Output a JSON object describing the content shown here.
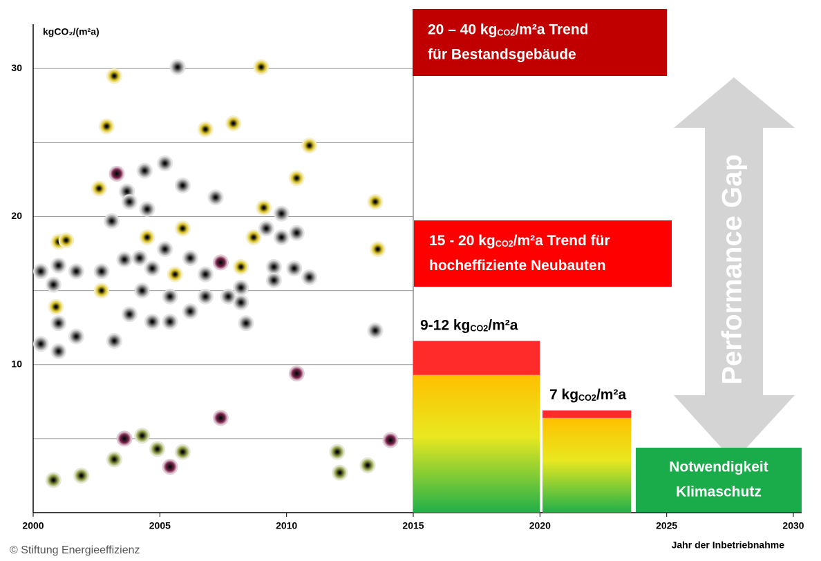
{
  "chart_data": {
    "type": "scatter",
    "y_label": "kgCO₂/(m²a)",
    "x_label": "Jahr der Inbetriebnahme",
    "footer": "© Stiftung Energieeffizienz",
    "xlim": [
      2000,
      2030
    ],
    "xticks": [
      2000,
      2005,
      2010,
      2015,
      2020,
      2025,
      2030
    ],
    "ylim": [
      0,
      33
    ],
    "yticks": [
      10,
      20,
      30
    ],
    "grid_lines": [
      5,
      10,
      15,
      20,
      25,
      30
    ],
    "grid_end": 2015,
    "series": [
      {
        "color": "#8a8a8a",
        "x": [
          2000.3,
          2000.8,
          2001.0,
          2001.7,
          2001.0,
          2000.3,
          2001.0,
          2001.7,
          2002.7,
          2003.1,
          2003.2,
          2003.6,
          2003.7,
          2003.8,
          2003.8,
          2004.2,
          2004.3,
          2004.4,
          2004.5,
          2004.7,
          2004.7,
          2005.2,
          2005.2,
          2005.4,
          2005.4,
          2005.7,
          2005.9,
          2006.2,
          2006.2,
          2006.8,
          2006.8,
          2007.2,
          2007.7,
          2008.2,
          2008.2,
          2008.4,
          2009.2,
          2009.5,
          2009.5,
          2009.8,
          2009.8,
          2010.3,
          2010.4,
          2010.9,
          2013.5
        ],
        "values": [
          16.3,
          15.4,
          16.7,
          16.3,
          12.8,
          11.4,
          10.9,
          11.9,
          16.3,
          19.7,
          11.6,
          17.1,
          21.7,
          21.0,
          13.4,
          17.2,
          15.0,
          23.1,
          20.5,
          16.5,
          12.9,
          23.6,
          17.8,
          14.6,
          12.9,
          30.1,
          22.1,
          17.2,
          13.6,
          16.1,
          14.6,
          21.3,
          14.6,
          15.2,
          14.2,
          12.8,
          19.2,
          16.6,
          15.7,
          20.2,
          18.6,
          16.5,
          18.9,
          15.9,
          12.3
        ]
      },
      {
        "color": "#d8c020",
        "x": [
          2001.0,
          2001.3,
          2000.9,
          2002.6,
          2002.7,
          2002.9,
          2003.2,
          2004.5,
          2005.6,
          2005.9,
          2006.8,
          2007.9,
          2008.7,
          2008.2,
          2009.0,
          2009.1,
          2010.4,
          2010.9,
          2013.5,
          2013.6
        ],
        "values": [
          18.3,
          18.4,
          13.9,
          21.9,
          15.0,
          26.1,
          29.5,
          18.6,
          16.1,
          19.2,
          25.9,
          26.3,
          18.6,
          16.6,
          30.1,
          20.6,
          22.6,
          24.8,
          21.0,
          17.8
        ]
      },
      {
        "color": "#7a1f4a",
        "x": [
          2003.3,
          2007.4,
          2010.4,
          2007.4,
          2003.6,
          2005.4,
          2014.1
        ],
        "values": [
          22.9,
          16.9,
          9.4,
          6.4,
          5.0,
          3.1,
          4.9
        ]
      },
      {
        "color": "#8a9a40",
        "x": [
          2000.8,
          2001.9,
          2003.2,
          2004.3,
          2004.9,
          2005.9,
          2012.0,
          2012.1,
          2013.2
        ],
        "values": [
          2.2,
          2.5,
          3.6,
          5.2,
          4.3,
          4.1,
          4.1,
          2.7,
          3.2
        ]
      }
    ],
    "bars": [
      {
        "x0": 2015,
        "x1": 2020,
        "segments": [
          9.3,
          2.3
        ],
        "label": {
          "pre": "9-12 kg",
          "sub": "CO2",
          "post": "/m²a"
        }
      },
      {
        "x0": 2020.1,
        "x1": 2023.6,
        "segments": [
          6.4,
          0.5
        ],
        "label": {
          "pre": "7 kg",
          "sub": "CO2",
          "post": "/m²a"
        }
      }
    ],
    "bar_cap_color": "#ff2a2a",
    "boxes": [
      {
        "color": "#c00000",
        "lines": [
          {
            "pre": "20 – 40 kg",
            "sub": "CO2",
            "post": "/m²a Trend"
          },
          {
            "pre": "für Bestandsgebäude"
          }
        ]
      },
      {
        "color": "#ff0000",
        "lines": [
          {
            "pre": "15 - 20 kg",
            "sub": "CO2",
            "post": "/m²a Trend für"
          },
          {
            "pre": "hocheffiziente Neubauten"
          }
        ]
      },
      {
        "color": "#1aab4a",
        "lines": [
          {
            "pre": "Notwendigkeit"
          },
          {
            "pre": "Klimaschutz"
          }
        ]
      }
    ],
    "arrow_label": "Performance Gap"
  }
}
